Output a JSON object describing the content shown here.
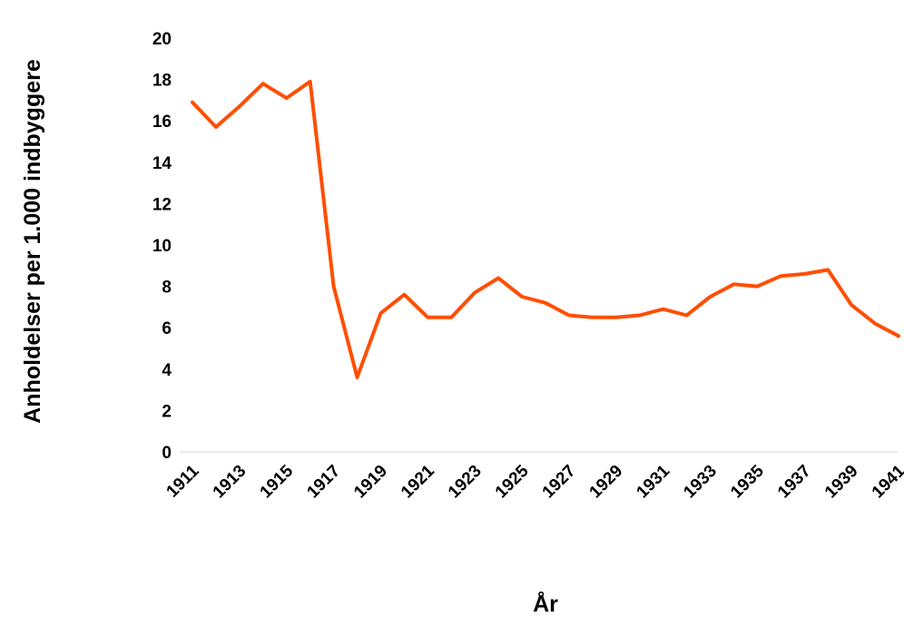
{
  "chart_data": {
    "type": "line",
    "title": "",
    "xlabel": "År",
    "ylabel": "Anholdelser per 1.000 indbyggere",
    "ylim": [
      0,
      20
    ],
    "yticks": [
      0,
      2,
      4,
      6,
      8,
      10,
      12,
      14,
      16,
      18,
      20
    ],
    "x": [
      1911,
      1912,
      1913,
      1914,
      1915,
      1916,
      1917,
      1918,
      1919,
      1920,
      1921,
      1922,
      1923,
      1924,
      1925,
      1926,
      1927,
      1928,
      1929,
      1930,
      1931,
      1932,
      1933,
      1934,
      1935,
      1936,
      1937,
      1938,
      1939,
      1940,
      1941
    ],
    "xtick_labels": [
      "1911",
      "1913",
      "1915",
      "1917",
      "1919",
      "1921",
      "1923",
      "1925",
      "1927",
      "1929",
      "1931",
      "1933",
      "1935",
      "1937",
      "1939",
      "1941"
    ],
    "series": [
      {
        "color": "#FF4E00",
        "values": [
          16.9,
          15.7,
          16.7,
          17.8,
          17.1,
          17.9,
          8.0,
          3.6,
          6.7,
          7.6,
          6.5,
          6.5,
          7.7,
          8.4,
          7.5,
          7.2,
          6.6,
          6.5,
          6.5,
          6.6,
          6.9,
          6.6,
          7.5,
          8.1,
          8.0,
          8.5,
          8.6,
          8.8,
          7.1,
          6.2,
          5.6
        ]
      }
    ],
    "grid": false,
    "legend": "none"
  }
}
